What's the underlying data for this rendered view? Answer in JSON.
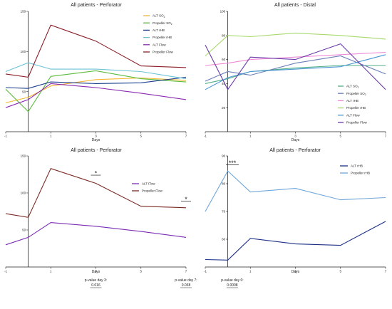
{
  "chart_data": [
    {
      "id": "p1",
      "type": "line",
      "title": "All patients - Perforator",
      "xlabel": "Days",
      "ylabel": "",
      "x": [
        -1,
        0,
        1,
        3,
        5,
        7
      ],
      "x_ticks": [
        -1,
        1,
        3,
        5,
        7
      ],
      "x_tick_labels": [
        "-1",
        "1",
        "3",
        "5",
        "7"
      ],
      "xlim": [
        -1,
        7
      ],
      "ylim": [
        0,
        150
      ],
      "y_ticks": [
        50,
        100,
        150
      ],
      "y_tick_labels": [
        "50",
        "100",
        "150"
      ],
      "legend": "top-right",
      "series": [
        {
          "name": "ALT SO",
          "name_sub": "2",
          "color": "#f5b731",
          "values": [
            36,
            43,
            57,
            65,
            67,
            64
          ]
        },
        {
          "name": "Propeller SO",
          "name_sub": "2",
          "color": "#5cbc3c",
          "values": [
            53,
            25,
            69,
            76,
            66,
            62
          ]
        },
        {
          "name": "ALT rHB",
          "name_sub": "",
          "color": "#1c3f8f",
          "values": [
            55,
            54,
            62,
            60,
            61,
            68
          ]
        },
        {
          "name": "Propeller rHB",
          "name_sub": "",
          "color": "#6cc2d4",
          "values": [
            75,
            86,
            78,
            78,
            75,
            66
          ]
        },
        {
          "name": "ALT Flow",
          "name_sub": "",
          "color": "#8a2ab0",
          "values": [
            30,
            40,
            60,
            55,
            48,
            40
          ]
        },
        {
          "name": "Propeller Flow",
          "name_sub": "",
          "color": "#8a1e28",
          "values": [
            72,
            68,
            133,
            113,
            82,
            80
          ]
        }
      ]
    },
    {
      "id": "p2",
      "type": "line",
      "title": "All patients - Distal",
      "xlabel": "Days",
      "ylabel": "",
      "x": [
        -1,
        0,
        1,
        3,
        5,
        7
      ],
      "x_ticks": [
        -1,
        1,
        3,
        5,
        7
      ],
      "x_tick_labels": [
        "-1",
        "1",
        "3",
        "5",
        "7"
      ],
      "xlim": [
        -1,
        7
      ],
      "ylim": [
        0,
        100
      ],
      "y_ticks": [
        20,
        40,
        60,
        80,
        100
      ],
      "y_tick_labels": [
        "20",
        "40",
        "60",
        "80",
        "100"
      ],
      "legend": "bottom-right",
      "series": [
        {
          "name": "ALT SO",
          "name_sub": "2",
          "color": "#4fae86",
          "values": [
            40,
            44,
            50,
            53,
            55,
            55
          ]
        },
        {
          "name": "Propeller SO",
          "name_sub": "2",
          "color": "#6a7fb8",
          "values": [
            42,
            50,
            47,
            57,
            63,
            48
          ]
        },
        {
          "name": "ALT rHB",
          "name_sub": "",
          "color": "#ee8ad8",
          "values": [
            55,
            57,
            60,
            62,
            64,
            66
          ]
        },
        {
          "name": "Propeller rHB",
          "name_sub": "",
          "color": "#a7d96b",
          "values": [
            63,
            80,
            79,
            82,
            80,
            77
          ]
        },
        {
          "name": "ALT Flow",
          "name_sub": "",
          "color": "#4a96d4",
          "values": [
            35,
            45,
            50,
            52,
            54,
            64
          ]
        },
        {
          "name": "Propeller Flow",
          "name_sub": "",
          "color": "#6a3ba8",
          "values": [
            72,
            35,
            62,
            60,
            73,
            35
          ]
        }
      ]
    },
    {
      "id": "p3",
      "type": "line",
      "title": "All patients - Perforator",
      "xlabel": "Days",
      "ylabel": "",
      "x": [
        -1,
        0,
        1,
        3,
        5,
        7
      ],
      "x_ticks": [
        -1,
        1,
        3,
        5,
        7
      ],
      "x_tick_labels": [
        "-1",
        "1",
        "3",
        "5",
        "7"
      ],
      "xlim": [
        -1,
        7
      ],
      "ylim": [
        0,
        150
      ],
      "y_ticks": [
        50,
        100,
        150
      ],
      "y_tick_labels": [
        "50",
        "100",
        "150"
      ],
      "legend": "top-right",
      "series": [
        {
          "name": "ALT Flow",
          "name_sub": "",
          "color": "#7a2cb4",
          "values": [
            30,
            40,
            60,
            55,
            48,
            40
          ]
        },
        {
          "name": "Propeller Flow",
          "name_sub": "",
          "color": "#7a2a24",
          "values": [
            72,
            67,
            133,
            113,
            82,
            80
          ]
        }
      ],
      "significance": [
        {
          "x": 3,
          "y": 124,
          "label": "*"
        },
        {
          "x": 7,
          "y": 89,
          "label": "*"
        }
      ],
      "notes": [
        {
          "x": 3,
          "label": "p-value day 3:",
          "value": "0.016"
        },
        {
          "x": 7,
          "label": "p-value day 7:",
          "value": "0.038"
        }
      ]
    },
    {
      "id": "p4",
      "type": "line",
      "title": "All patients - Perforator",
      "xlabel": "Days",
      "ylabel": "",
      "x": [
        -1,
        0,
        1,
        3,
        5,
        7
      ],
      "x_ticks": [
        -1,
        1,
        3,
        5,
        7
      ],
      "x_tick_labels": [
        "-1",
        "1",
        "3",
        "5",
        "7"
      ],
      "xlim": [
        -1,
        7
      ],
      "ylim": [
        50,
        90
      ],
      "y_ticks": [
        60,
        70,
        80,
        90
      ],
      "y_tick_labels": [
        "60",
        "70",
        "80",
        "90"
      ],
      "legend": "top-right",
      "series": [
        {
          "name": "ALT rHB",
          "name_sub": "",
          "color": "#1c2f86",
          "values": [
            52.7,
            52.5,
            60.3,
            58.3,
            57.8,
            66.4
          ]
        },
        {
          "name": "Propeller rHB",
          "name_sub": "",
          "color": "#6fa6d8",
          "values": [
            70,
            84.6,
            77,
            78.3,
            74.2,
            75
          ]
        }
      ],
      "significance": [
        {
          "x": 0.2,
          "y": 86.8,
          "label": "***"
        }
      ],
      "notes": [
        {
          "x": 0.2,
          "label": "p-value day 0:",
          "value": "0.0008"
        }
      ]
    }
  ]
}
